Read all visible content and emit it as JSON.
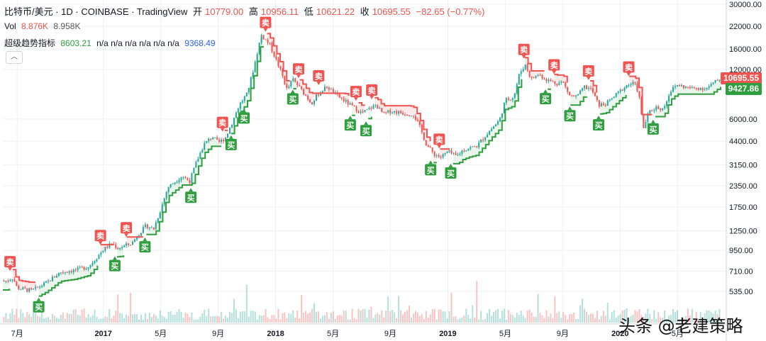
{
  "header": {
    "symbol": "比特币/美元 · 1D · COINBASE · TradingView",
    "open_label": "开",
    "open": "10779.00",
    "high_label": "高",
    "high": "10956.11",
    "low_label": "低",
    "low": "10621.22",
    "close_label": "收",
    "close": "10695.55",
    "change": "−82.65 (−0.77%)"
  },
  "volume": {
    "label": "Vol",
    "v1": "8.876K",
    "v2": "8.958K"
  },
  "indicator": {
    "label": "超级趋势指标",
    "value1": "8603.21",
    "na": "n/a n/a n/a n/a n/a n/a",
    "value2": "9368.49"
  },
  "price_tags": {
    "close": "10695.55",
    "supertrend": "9427.86"
  },
  "colors": {
    "up": "#26a69a",
    "down": "#ef5350",
    "sell": "#f05350",
    "buy": "#2e9e3e",
    "grid": "#eef0f3"
  },
  "watermark": "头条 @老建策略",
  "signal_labels": {
    "sell": "卖",
    "buy": "买"
  },
  "chart_data": {
    "type": "candlestick",
    "scale": "log",
    "title": "比特币/美元 · 1D · COINBASE",
    "ylim": [
      400,
      30000
    ],
    "y_ticks": [
      30000,
      22000,
      16000,
      12000,
      6000,
      4400,
      3150,
      2350,
      1750,
      1250,
      950,
      710,
      535
    ],
    "y_tick_labels": [
      "30000.00",
      "22000.00",
      "16000.00",
      "12000.00",
      "6000.00",
      "4400.00",
      "3150.00",
      "2350.00",
      "1750.00",
      "1250.00",
      "950.00",
      "710.00",
      "535.00"
    ],
    "x_ticks": [
      {
        "label": "7月",
        "t": 1.0
      },
      {
        "label": "2017",
        "t": 7.0
      },
      {
        "label": "5月",
        "t": 11.0
      },
      {
        "label": "9月",
        "t": 15.0
      },
      {
        "label": "2018",
        "t": 19.0
      },
      {
        "label": "5月",
        "t": 23.0
      },
      {
        "label": "9月",
        "t": 27.0
      },
      {
        "label": "2019",
        "t": 31.0
      },
      {
        "label": "5月",
        "t": 35.0
      },
      {
        "label": "9月",
        "t": 39.0
      },
      {
        "label": "2020",
        "t": 43.0
      },
      {
        "label": "5月",
        "t": 47.0
      }
    ],
    "price_path": [
      [
        0.3,
        620
      ],
      [
        0.7,
        650
      ],
      [
        1.0,
        560
      ],
      [
        2.0,
        540
      ],
      [
        3.0,
        600
      ],
      [
        4.0,
        700
      ],
      [
        5.0,
        720
      ],
      [
        6.0,
        760
      ],
      [
        7.0,
        960
      ],
      [
        7.6,
        1050
      ],
      [
        8.0,
        980
      ],
      [
        9.0,
        1050
      ],
      [
        9.4,
        1180
      ],
      [
        10.0,
        1350
      ],
      [
        10.5,
        1280
      ],
      [
        11.0,
        1700
      ],
      [
        11.5,
        2300
      ],
      [
        12.0,
        2500
      ],
      [
        12.5,
        2700
      ],
      [
        13.0,
        2500
      ],
      [
        13.5,
        3300
      ],
      [
        14.0,
        4200
      ],
      [
        14.6,
        4700
      ],
      [
        15.0,
        4300
      ],
      [
        15.5,
        4600
      ],
      [
        16.0,
        5800
      ],
      [
        16.5,
        7400
      ],
      [
        17.0,
        8500
      ],
      [
        17.5,
        12500
      ],
      [
        18.0,
        19500
      ],
      [
        18.6,
        17000
      ],
      [
        19.0,
        14000
      ],
      [
        19.4,
        11500
      ],
      [
        19.8,
        9000
      ],
      [
        20.2,
        10500
      ],
      [
        20.8,
        9000
      ],
      [
        21.5,
        7500
      ],
      [
        22.0,
        8600
      ],
      [
        22.6,
        9500
      ],
      [
        23.0,
        8700
      ],
      [
        24.0,
        7500
      ],
      [
        24.6,
        6900
      ],
      [
        25.0,
        6500
      ],
      [
        26.0,
        7300
      ],
      [
        26.5,
        6400
      ],
      [
        27.0,
        6700
      ],
      [
        28.0,
        6500
      ],
      [
        28.6,
        6400
      ],
      [
        29.0,
        5500
      ],
      [
        29.5,
        4200
      ],
      [
        30.0,
        3700
      ],
      [
        30.5,
        3500
      ],
      [
        31.0,
        3800
      ],
      [
        31.6,
        3550
      ],
      [
        32.0,
        3850
      ],
      [
        32.5,
        4000
      ],
      [
        33.0,
        4100
      ],
      [
        34.0,
        5200
      ],
      [
        34.6,
        5900
      ],
      [
        35.0,
        7800
      ],
      [
        35.6,
        8200
      ],
      [
        36.0,
        11500
      ],
      [
        36.4,
        12800
      ],
      [
        36.8,
        10500
      ],
      [
        37.3,
        11200
      ],
      [
        38.0,
        10300
      ],
      [
        38.6,
        9900
      ],
      [
        39.0,
        10100
      ],
      [
        39.5,
        8300
      ],
      [
        40.0,
        8200
      ],
      [
        40.5,
        9400
      ],
      [
        41.0,
        9100
      ],
      [
        41.5,
        7300
      ],
      [
        42.0,
        7400
      ],
      [
        42.5,
        8100
      ],
      [
        43.0,
        8900
      ],
      [
        43.5,
        9700
      ],
      [
        44.0,
        9900
      ],
      [
        44.3,
        8600
      ],
      [
        44.6,
        5200
      ],
      [
        45.0,
        6600
      ],
      [
        45.5,
        7100
      ],
      [
        46.0,
        6900
      ],
      [
        46.5,
        8900
      ],
      [
        47.0,
        9700
      ],
      [
        47.5,
        9400
      ],
      [
        48.0,
        9200
      ],
      [
        48.5,
        9300
      ],
      [
        49.0,
        9200
      ],
      [
        49.5,
        9900
      ],
      [
        50.0,
        10695.55
      ]
    ],
    "t_range": [
      0,
      50
    ],
    "sell_signals": [
      0.5,
      6.8,
      8.6,
      15.3,
      18.3,
      20.6,
      22.0,
      24.6,
      25.7,
      30.4,
      36.3,
      38.4,
      40.8,
      43.6
    ],
    "buy_signals": [
      2.5,
      7.8,
      9.9,
      13.1,
      15.9,
      16.8,
      20.2,
      24.2,
      25.3,
      29.8,
      31.2,
      37.8,
      39.5,
      41.5,
      45.3
    ],
    "series_values": {
      "supertrend_last": 9427.86,
      "close_last": 10695.55
    }
  }
}
